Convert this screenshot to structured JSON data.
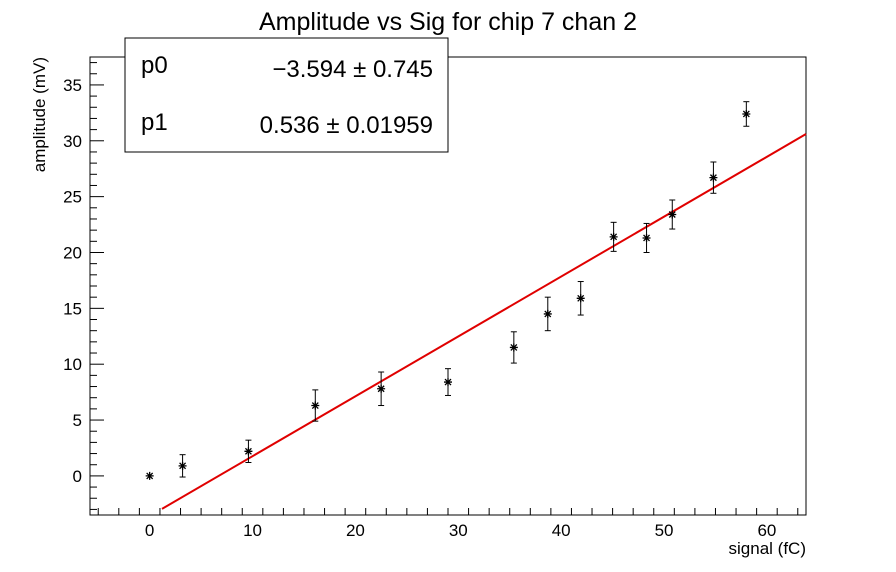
{
  "chart_data": {
    "type": "scatter",
    "title": "Amplitude vs Sig for chip 7 chan 2",
    "xlabel": "signal (fC)",
    "ylabel": "amplitude (mV)",
    "xlim": [
      -5.8,
      63.8
    ],
    "ylim": [
      -3.5,
      37.5
    ],
    "x_ticks": [
      0,
      10,
      20,
      30,
      40,
      50,
      60
    ],
    "y_ticks": [
      0,
      5,
      10,
      15,
      20,
      25,
      30,
      35
    ],
    "x_tick_labels": [
      "0",
      "10",
      "20",
      "30",
      "40",
      "50",
      "60"
    ],
    "y_tick_labels": [
      "0",
      "5",
      "10",
      "15",
      "20",
      "25",
      "30",
      "35"
    ],
    "grid": false,
    "marker": "star",
    "marker_color": "#000000",
    "fit_color": "#e00000",
    "points": [
      {
        "x": 0.0,
        "y": 0.0,
        "err": 0.0
      },
      {
        "x": 3.2,
        "y": 0.9,
        "err": 1.0
      },
      {
        "x": 9.6,
        "y": 2.2,
        "err": 1.0
      },
      {
        "x": 16.1,
        "y": 6.3,
        "err": 1.4
      },
      {
        "x": 22.5,
        "y": 7.8,
        "err": 1.5
      },
      {
        "x": 29.0,
        "y": 8.4,
        "err": 1.2
      },
      {
        "x": 35.4,
        "y": 11.5,
        "err": 1.4
      },
      {
        "x": 38.7,
        "y": 14.5,
        "err": 1.5
      },
      {
        "x": 41.9,
        "y": 15.9,
        "err": 1.5
      },
      {
        "x": 45.1,
        "y": 21.4,
        "err": 1.3
      },
      {
        "x": 48.3,
        "y": 21.3,
        "err": 1.3
      },
      {
        "x": 50.8,
        "y": 23.4,
        "err": 1.3
      },
      {
        "x": 54.8,
        "y": 26.7,
        "err": 1.4
      },
      {
        "x": 58.0,
        "y": 32.4,
        "err": 1.1
      }
    ],
    "fit": {
      "p0": -3.594,
      "p1": 0.536,
      "x_range": [
        1.2,
        63.8
      ]
    },
    "stats": {
      "p0_label": "p0",
      "p0_value": "−3.594 ± 0.745",
      "p1_label": "p1",
      "p1_value": "0.536 ± 0.01959"
    }
  }
}
